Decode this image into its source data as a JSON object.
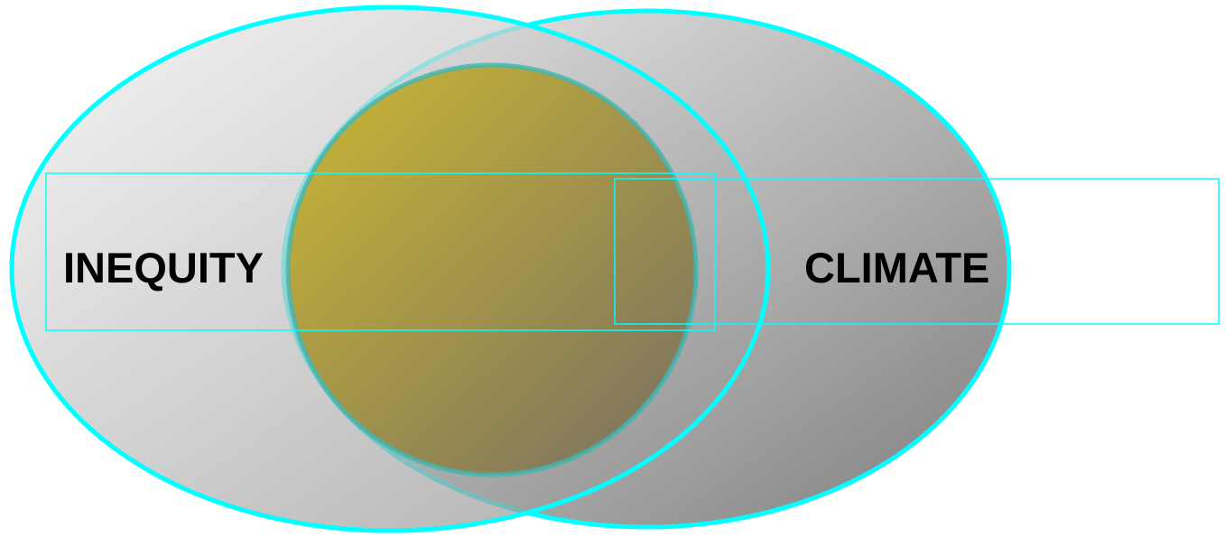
{
  "diagram": {
    "left_set": {
      "label": "INEQUITY"
    },
    "right_set": {
      "label": "CLIMATE"
    }
  },
  "colors": {
    "outline": "#00ffff",
    "ellipse_light": "#ececec",
    "ellipse_dark": "#8a8a8a",
    "overlap_light": "#c9b42a",
    "overlap_dark": "#7a6f5c"
  }
}
